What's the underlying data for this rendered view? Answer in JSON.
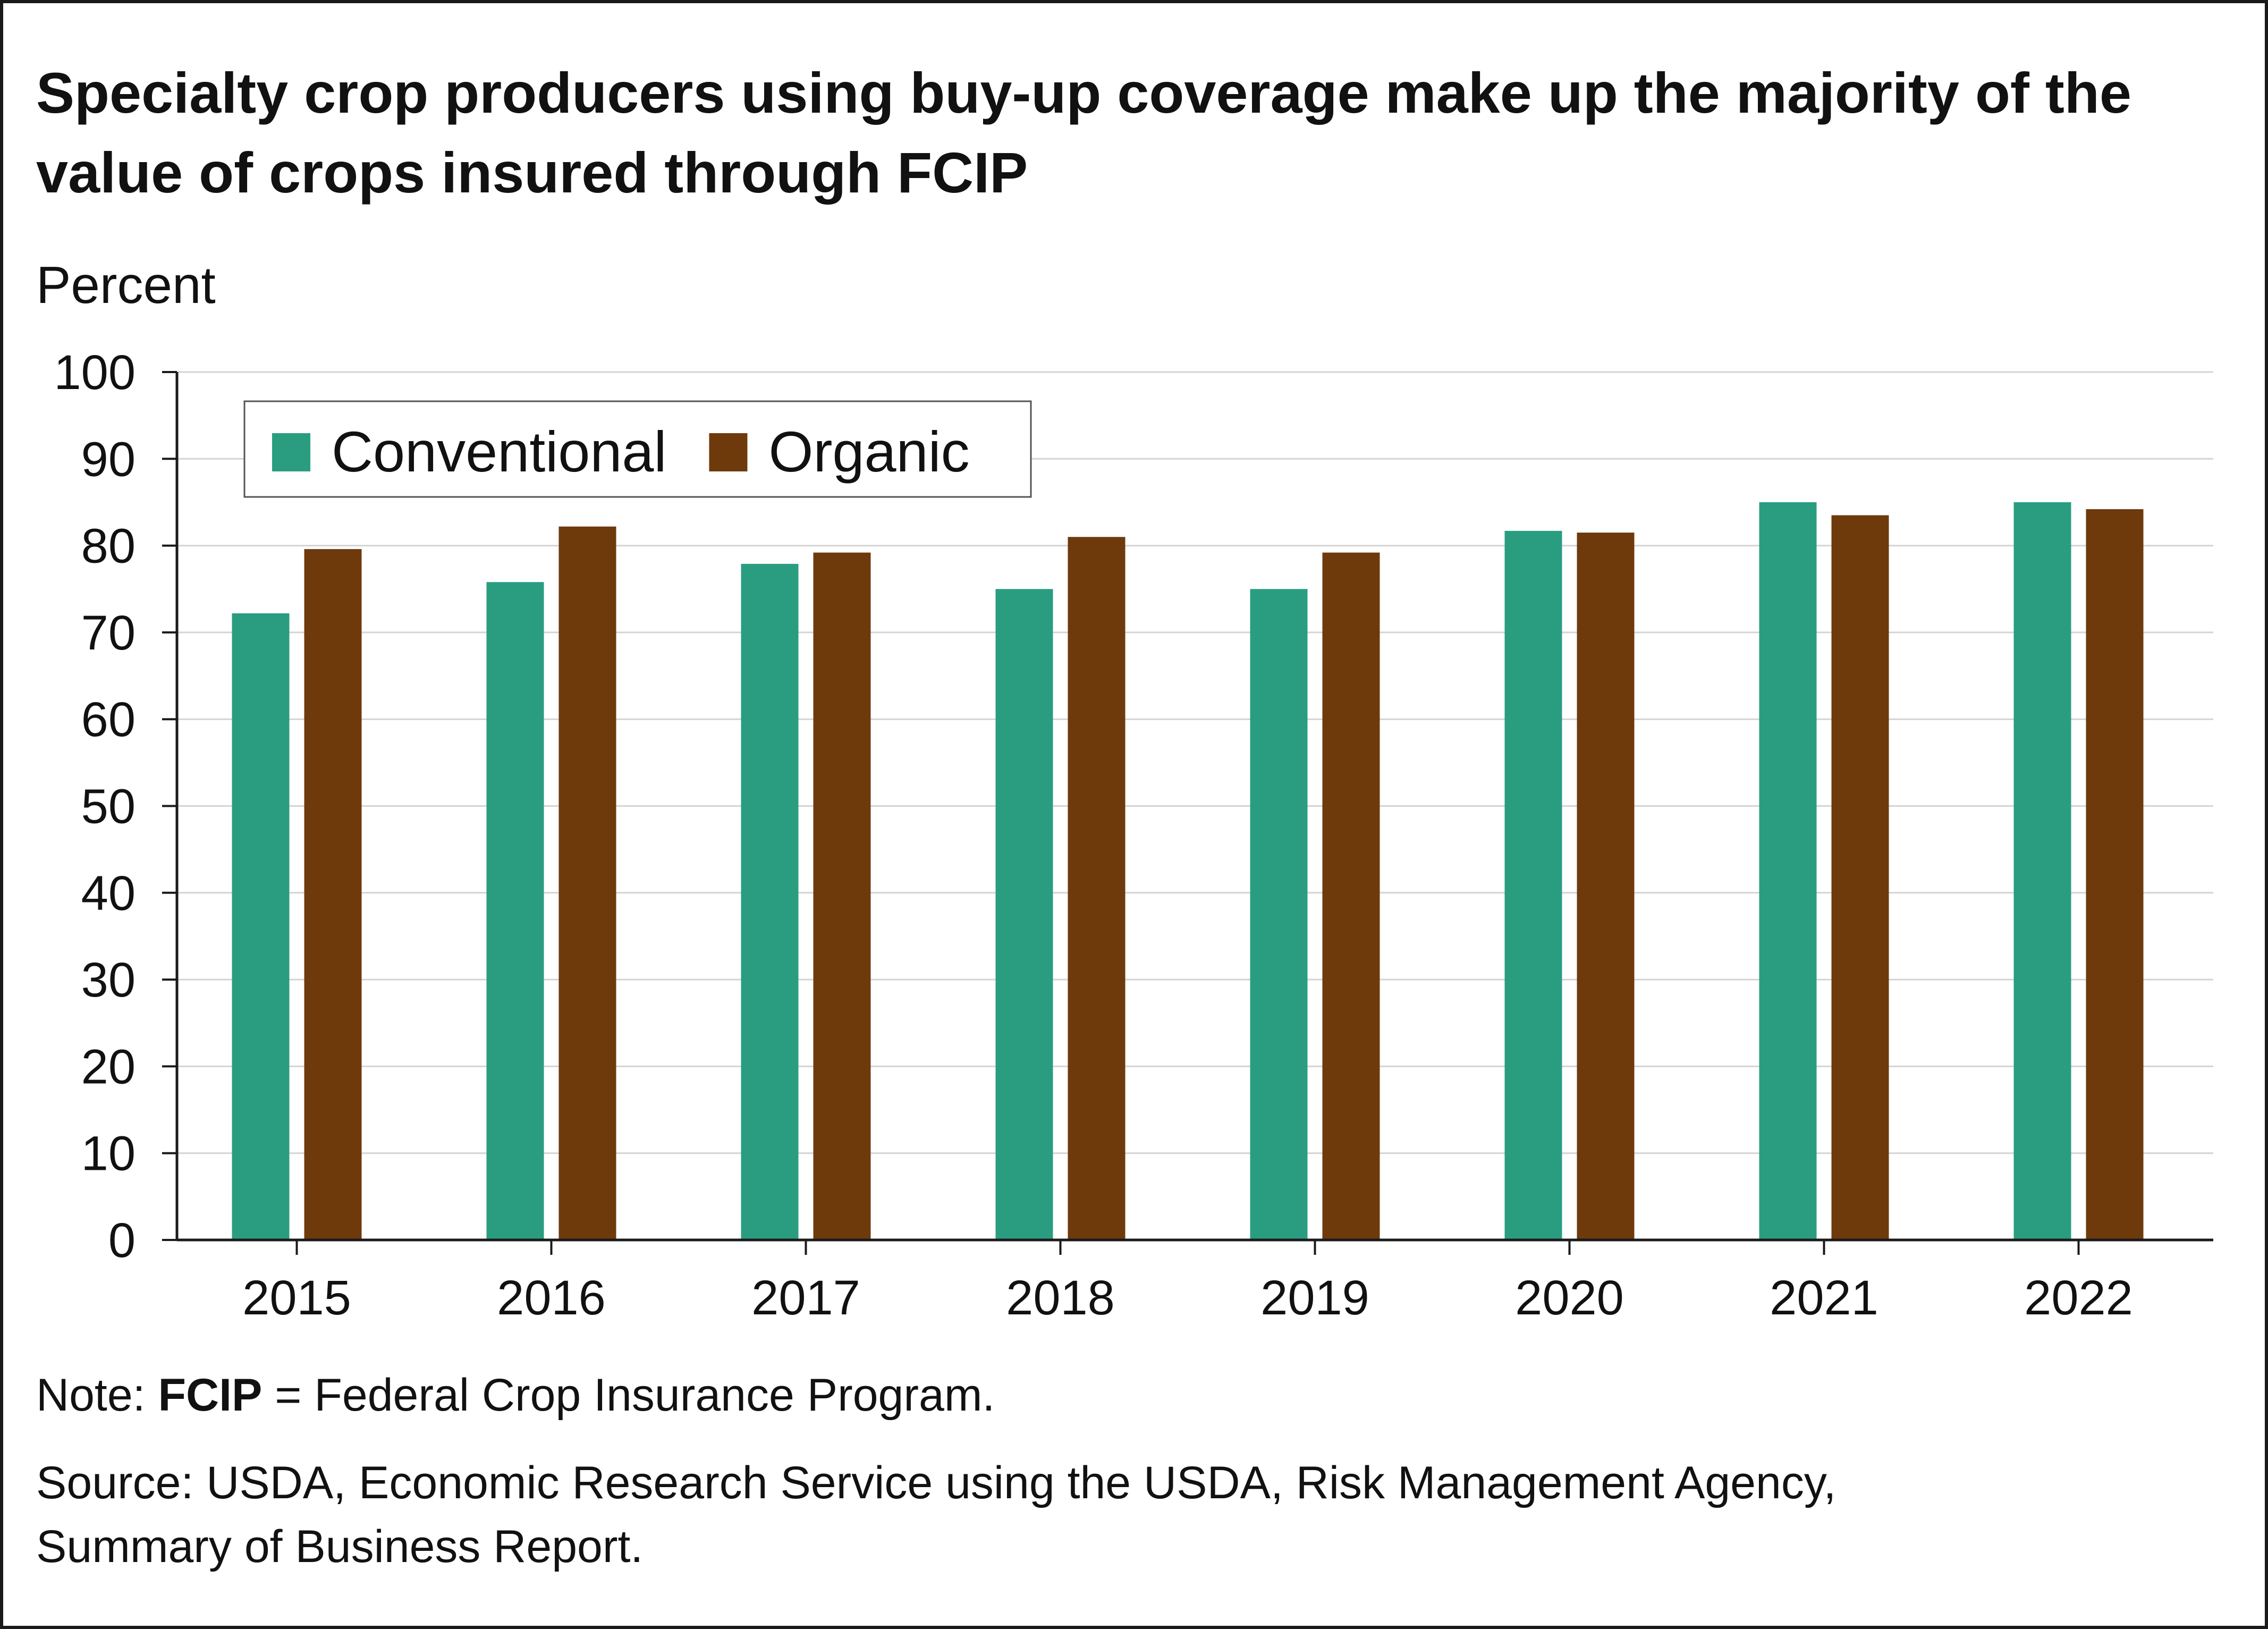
{
  "chart_data": {
    "type": "bar",
    "title": "Specialty crop producers using buy-up coverage make up the majority of the value of crops insured through FCIP",
    "ylabel": "Percent",
    "xlabel": "",
    "ylim": [
      0,
      100
    ],
    "yticks": [
      0,
      10,
      20,
      30,
      40,
      50,
      60,
      70,
      80,
      90,
      100
    ],
    "categories": [
      "2015",
      "2016",
      "2017",
      "2018",
      "2019",
      "2020",
      "2021",
      "2022"
    ],
    "series": [
      {
        "name": "Conventional",
        "color": "#2a9d80",
        "values": [
          72.2,
          75.8,
          77.9,
          75.0,
          75.0,
          81.7,
          85.0,
          85.0
        ]
      },
      {
        "name": "Organic",
        "color": "#6e3a0c",
        "values": [
          79.6,
          82.2,
          79.2,
          81.0,
          79.2,
          81.5,
          83.5,
          84.2
        ]
      }
    ],
    "grid": true,
    "legend_position": "top-left"
  },
  "note": {
    "prefix": "Note: ",
    "term": "FCIP",
    "rest": " = Federal Crop Insurance Program."
  },
  "source": {
    "line1": "Source: USDA, Economic Research Service using the USDA, Risk Management Agency,",
    "line2": "Summary of Business Report."
  }
}
